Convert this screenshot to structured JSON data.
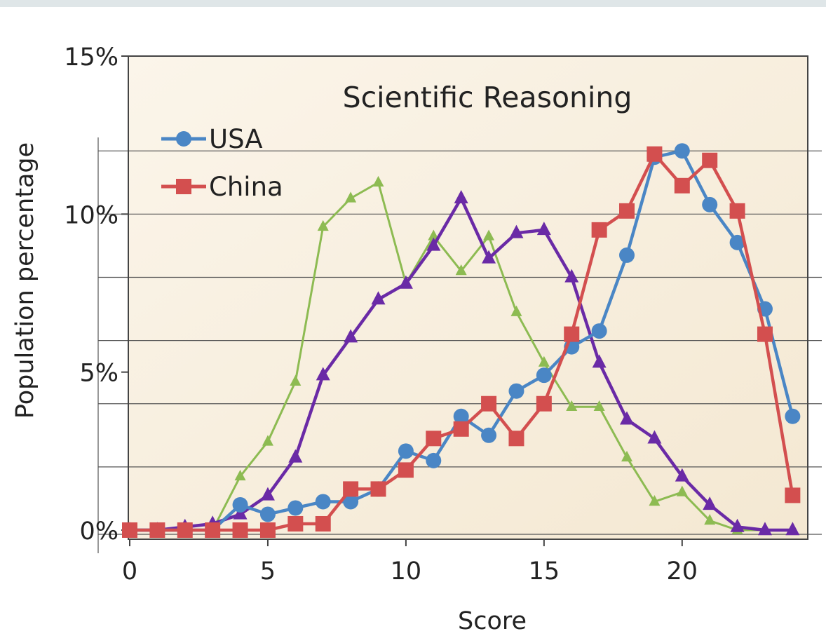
{
  "chart_data": {
    "type": "line",
    "title": "Scientific Reasoning",
    "xlabel": "Score",
    "ylabel": "Population percentage",
    "xlim": [
      0,
      24
    ],
    "ylim": [
      0,
      15
    ],
    "x_ticks": [
      0,
      5,
      10,
      15,
      20
    ],
    "y_ticks": [
      0,
      5,
      10,
      15
    ],
    "y_tick_labels": [
      "0%",
      "5%",
      "10%",
      "15%"
    ],
    "legend_position": "top-left",
    "x": [
      0,
      1,
      2,
      3,
      4,
      5,
      6,
      7,
      8,
      9,
      10,
      11,
      12,
      13,
      14,
      15,
      16,
      17,
      18,
      19,
      20,
      21,
      22,
      23,
      24
    ],
    "series": [
      {
        "name": "",
        "marker": "triangle",
        "color": "#8dbb52",
        "values": [
          0,
          0,
          0,
          0,
          1.7,
          2.8,
          4.7,
          9.6,
          10.5,
          11.0,
          7.8,
          9.3,
          8.2,
          9.3,
          6.9,
          5.3,
          3.9,
          3.9,
          2.3,
          0.9,
          1.2,
          0.3,
          0,
          0,
          0
        ]
      },
      {
        "name": "",
        "marker": "triangle",
        "color": "#6a2aa6",
        "values": [
          0,
          0,
          0.1,
          0.2,
          0.5,
          1.1,
          2.3,
          4.9,
          6.1,
          7.3,
          7.8,
          9.0,
          10.5,
          8.6,
          9.4,
          9.5,
          8.0,
          5.3,
          3.5,
          2.9,
          1.7,
          0.8,
          0.1,
          0,
          0
        ]
      },
      {
        "name": "USA",
        "marker": "circle",
        "color": "#4a86c5",
        "values": [
          0,
          0,
          0,
          0,
          0.8,
          0.5,
          0.7,
          0.9,
          0.9,
          1.3,
          2.5,
          2.2,
          3.6,
          3.0,
          4.4,
          4.9,
          5.8,
          6.3,
          8.7,
          11.8,
          12.0,
          10.3,
          9.1,
          7.0,
          3.6
        ]
      },
      {
        "name": "China",
        "marker": "square",
        "color": "#d34f4f",
        "values": [
          0,
          0,
          0,
          0,
          0,
          0,
          0.2,
          0.2,
          1.3,
          1.3,
          1.9,
          2.9,
          3.2,
          4.0,
          2.9,
          4.0,
          6.2,
          9.5,
          10.1,
          11.9,
          10.9,
          11.7,
          10.1,
          6.2,
          1.1
        ]
      }
    ],
    "colors": {
      "plot_background": "#f8f0e0",
      "axis": "#444444",
      "gridline": "#555555",
      "text": "#222222"
    }
  }
}
